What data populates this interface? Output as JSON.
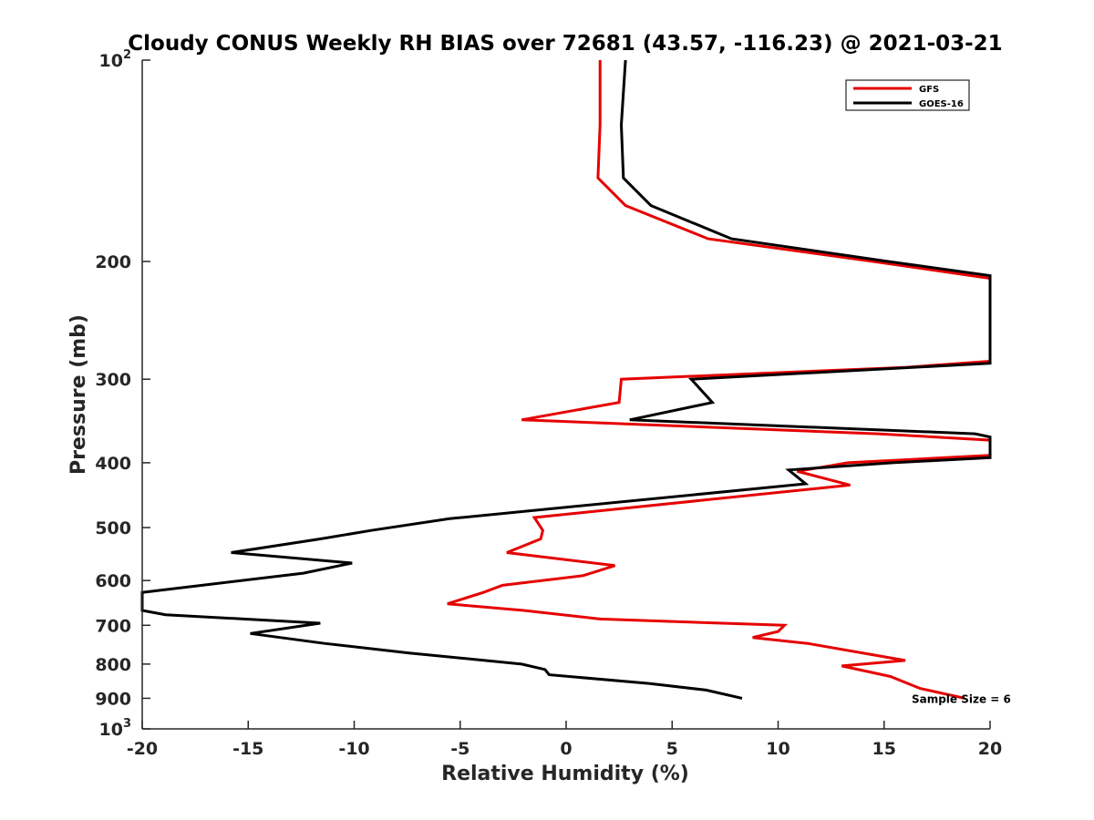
{
  "chart_data": {
    "type": "line",
    "title": "Cloudy CONUS Weekly RH BIAS over 72681 (43.57, -116.23) @ 2021-03-21",
    "xlabel": "Relative Humidity (%)",
    "ylabel": "Pressure (mb)",
    "xlim": [
      -20,
      20
    ],
    "ylim": [
      100,
      1000
    ],
    "yscale": "log",
    "y_reversed": true,
    "grid": false,
    "legend_position": "top-right",
    "x_ticks": [
      -20,
      -15,
      -10,
      -5,
      0,
      5,
      10,
      15,
      20
    ],
    "x_tick_labels": [
      "-20",
      "-15",
      "-10",
      "-5",
      "0",
      "5",
      "10",
      "15",
      "20"
    ],
    "y_ticks": [
      {
        "value": 100,
        "base": "10",
        "exp": "2"
      },
      {
        "value": 200,
        "label": "200"
      },
      {
        "value": 300,
        "label": "300"
      },
      {
        "value": 400,
        "label": "400"
      },
      {
        "value": 500,
        "label": "500"
      },
      {
        "value": 600,
        "label": "600"
      },
      {
        "value": 700,
        "label": "700"
      },
      {
        "value": 800,
        "label": "800"
      },
      {
        "value": 900,
        "label": "900"
      },
      {
        "value": 1000,
        "base": "10",
        "exp": "3"
      }
    ],
    "series": [
      {
        "name": "GFS",
        "color": "#e60000",
        "points": [
          [
            1.6,
            100
          ],
          [
            1.6,
            125
          ],
          [
            1.5,
            150
          ],
          [
            2.8,
            165
          ],
          [
            6.7,
            185
          ],
          [
            14.5,
            200
          ],
          [
            20,
            212
          ],
          [
            20,
            282
          ],
          [
            16,
            288
          ],
          [
            2.6,
            300
          ],
          [
            2.5,
            325
          ],
          [
            -2.1,
            345
          ],
          [
            14.7,
            362
          ],
          [
            20,
            370
          ],
          [
            20,
            390
          ],
          [
            13.3,
            400
          ],
          [
            10.9,
            412
          ],
          [
            13.4,
            432
          ],
          [
            -1.5,
            483
          ],
          [
            -1.1,
            505
          ],
          [
            -1.2,
            520
          ],
          [
            -2.8,
            545
          ],
          [
            2.3,
            570
          ],
          [
            0.8,
            590
          ],
          [
            -3.0,
            610
          ],
          [
            -3.9,
            625
          ],
          [
            -5.6,
            650
          ],
          [
            -2.0,
            665
          ],
          [
            1.6,
            685
          ],
          [
            10.3,
            700
          ],
          [
            10.0,
            715
          ],
          [
            8.8,
            730
          ],
          [
            11.4,
            745
          ],
          [
            16.0,
            790
          ],
          [
            13.0,
            805
          ],
          [
            15.3,
            835
          ],
          [
            16.7,
            870
          ],
          [
            18.8,
            900
          ]
        ]
      },
      {
        "name": "GOES-16",
        "color": "#000000",
        "points": [
          [
            2.8,
            100
          ],
          [
            2.6,
            125
          ],
          [
            2.7,
            150
          ],
          [
            4.0,
            165
          ],
          [
            7.8,
            185
          ],
          [
            15.2,
            200
          ],
          [
            20,
            210
          ],
          [
            20,
            284
          ],
          [
            5.9,
            300
          ],
          [
            6.9,
            325
          ],
          [
            3.0,
            345
          ],
          [
            19.3,
            362
          ],
          [
            20,
            366
          ],
          [
            20,
            393
          ],
          [
            15.4,
            400
          ],
          [
            10.5,
            410
          ],
          [
            11.3,
            430
          ],
          [
            -5.5,
            485
          ],
          [
            -9.2,
            505
          ],
          [
            -11.6,
            520
          ],
          [
            -15.8,
            545
          ],
          [
            -10.1,
            565
          ],
          [
            -12.4,
            585
          ],
          [
            -20,
            625
          ],
          [
            -20,
            665
          ],
          [
            -18.9,
            675
          ],
          [
            -11.6,
            695
          ],
          [
            -14.9,
            720
          ],
          [
            -11.4,
            745
          ],
          [
            -7.4,
            770
          ],
          [
            -2.1,
            800
          ],
          [
            -1.0,
            815
          ],
          [
            -0.8,
            830
          ],
          [
            3.9,
            855
          ],
          [
            6.6,
            875
          ],
          [
            8.3,
            900
          ]
        ]
      }
    ],
    "annotations": [
      {
        "text": "Sample Size = 6",
        "x": 16.3,
        "y": 900
      }
    ]
  }
}
